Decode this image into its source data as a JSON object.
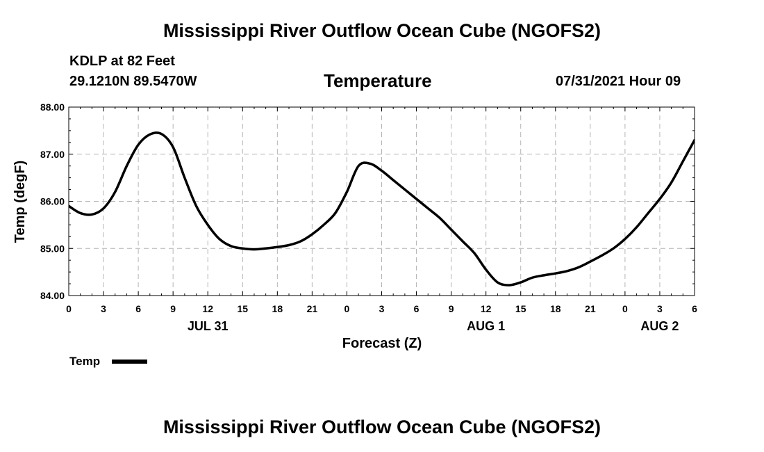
{
  "header": {
    "main_title": "Mississippi River Outflow Ocean Cube (NGOFS2)",
    "station": "KDLP at 82 Feet",
    "coords": "29.1210N  89.5470W",
    "variable": "Temperature",
    "timestamp": "07/31/2021 Hour 09"
  },
  "footer": {
    "title": "Mississippi River Outflow Ocean Cube (NGOFS2)"
  },
  "chart_data": {
    "type": "line",
    "title": "Temperature",
    "xlabel": "Forecast (Z)",
    "ylabel": "Temp (degF)",
    "ylim": [
      84.0,
      88.0
    ],
    "xlim": [
      0,
      54
    ],
    "y_ticks": [
      "84.00",
      "85.00",
      "86.00",
      "87.00",
      "88.00"
    ],
    "x_ticks": [
      "0",
      "3",
      "6",
      "9",
      "12",
      "15",
      "18",
      "21",
      "0",
      "3",
      "6",
      "9",
      "12",
      "15",
      "18",
      "21",
      "0",
      "3",
      "6"
    ],
    "date_labels": [
      {
        "text": "JUL 31",
        "hour": 12
      },
      {
        "text": "AUG 1",
        "hour": 36
      },
      {
        "text": "AUG 2",
        "hour": 51
      }
    ],
    "grid": true,
    "legend": {
      "position": "bottom-left"
    },
    "series": [
      {
        "name": "Temp",
        "x": [
          0,
          1,
          2,
          3,
          4,
          5,
          6,
          7,
          8,
          9,
          10,
          11,
          12,
          13,
          14,
          15,
          16,
          17,
          18,
          19,
          20,
          21,
          22,
          23,
          24,
          25,
          26,
          27,
          28,
          29,
          30,
          31,
          32,
          33,
          34,
          35,
          36,
          37,
          38,
          39,
          40,
          41,
          42,
          43,
          44,
          45,
          46,
          47,
          48,
          49,
          50,
          51,
          52,
          53,
          54
        ],
        "values": [
          85.9,
          85.75,
          85.72,
          85.85,
          86.2,
          86.75,
          87.2,
          87.42,
          87.43,
          87.15,
          86.5,
          85.9,
          85.5,
          85.2,
          85.05,
          85.0,
          84.98,
          85.0,
          85.03,
          85.07,
          85.15,
          85.3,
          85.5,
          85.75,
          86.2,
          86.75,
          86.8,
          86.65,
          86.45,
          86.25,
          86.05,
          85.85,
          85.65,
          85.4,
          85.15,
          84.9,
          84.55,
          84.28,
          84.22,
          84.28,
          84.38,
          84.43,
          84.47,
          84.52,
          84.6,
          84.72,
          84.85,
          85.0,
          85.2,
          85.45,
          85.75,
          86.05,
          86.4,
          86.85,
          87.3
        ]
      }
    ]
  }
}
